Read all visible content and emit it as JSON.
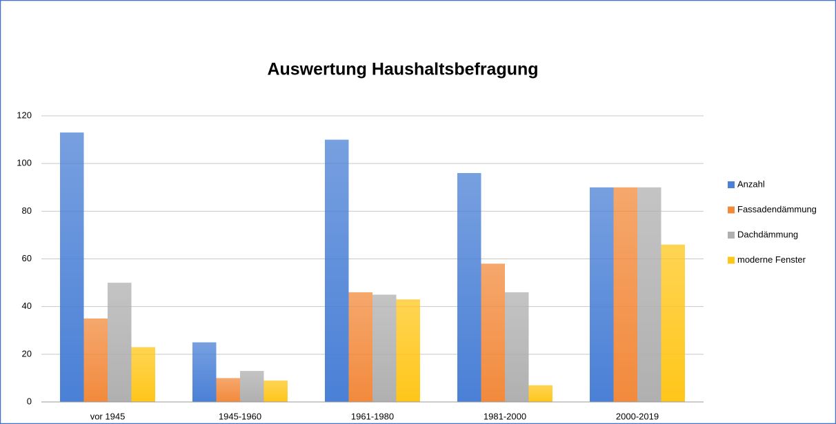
{
  "chart_data": {
    "type": "bar",
    "title": "Auswertung Haushaltsbefragung",
    "categories": [
      "vor 1945",
      "1945-1960",
      "1961-1980",
      "1981-2000",
      "2000-2019"
    ],
    "series": [
      {
        "name": "Anzahl",
        "color": "#4a80d6",
        "values": [
          113,
          25,
          110,
          96,
          90
        ]
      },
      {
        "name": "Fassadendämmung",
        "color": "#f28a3c",
        "values": [
          35,
          10,
          46,
          58,
          90
        ]
      },
      {
        "name": "Dachdämmung",
        "color": "#b0b0b0",
        "values": [
          50,
          13,
          45,
          46,
          90
        ]
      },
      {
        "name": "moderne Fenster",
        "color": "#ffc61a",
        "values": [
          23,
          9,
          43,
          7,
          66
        ]
      }
    ],
    "ylim": [
      0,
      120
    ],
    "yticks": [
      0,
      20,
      40,
      60,
      80,
      100,
      120
    ],
    "grid": true,
    "legend": "right"
  }
}
